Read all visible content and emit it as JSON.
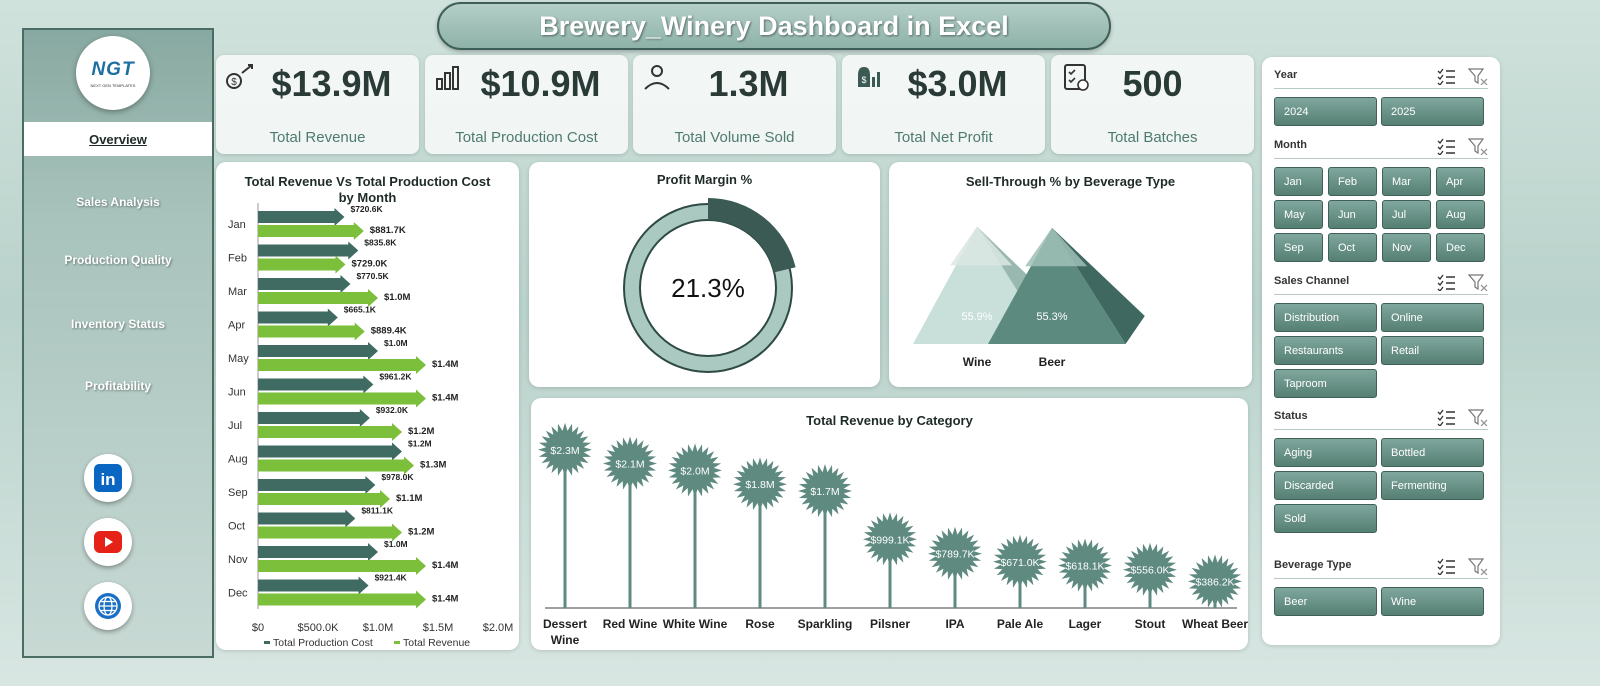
{
  "title": "Brewery_Winery Dashboard in Excel",
  "logo": {
    "text": "NGT",
    "subtext": "NEXT GEN TEMPLATES"
  },
  "nav": [
    {
      "label": "Overview",
      "active": true
    },
    {
      "label": "Sales Analysis"
    },
    {
      "label": "Production Quality"
    },
    {
      "label": "Inventory Status"
    },
    {
      "label": "Profitability"
    }
  ],
  "social": [
    "linkedin-icon",
    "youtube-icon",
    "globe-icon"
  ],
  "kpis": [
    {
      "value": "$13.9M",
      "label": "Total Revenue",
      "icon": "revenue-icon"
    },
    {
      "value": "$10.9M",
      "label": "Total Production Cost",
      "icon": "production-cost-icon"
    },
    {
      "value": "1.3M",
      "label": "Total Volume Sold",
      "icon": "volume-sold-icon"
    },
    {
      "value": "$3.0M",
      "label": "Total Net Profit",
      "icon": "net-profit-icon"
    },
    {
      "value": "500",
      "label": "Total Batches",
      "icon": "batches-icon"
    }
  ],
  "slicers": [
    {
      "title": "Year",
      "items": [
        "2024",
        "2025"
      ]
    },
    {
      "title": "Month",
      "items": [
        "Jan",
        "Feb",
        "Mar",
        "Apr",
        "May",
        "Jun",
        "Jul",
        "Aug",
        "Sep",
        "Oct",
        "Nov",
        "Dec"
      ]
    },
    {
      "title": "Sales Channel",
      "items": [
        "Distribution",
        "Online",
        "Restaurants",
        "Retail",
        "Taproom"
      ]
    },
    {
      "title": "Status",
      "items": [
        "Aging",
        "Bottled",
        "Discarded",
        "Fermenting",
        "Sold"
      ]
    },
    {
      "title": "Beverage Type",
      "items": [
        "Beer",
        "Wine"
      ]
    }
  ],
  "colors": {
    "cost": "#3f6b63",
    "revenue": "#7bbf3a",
    "accent": "#5e8a80",
    "dark": "#3a5a53",
    "light": "#a9c9c1"
  },
  "chart_data": [
    {
      "type": "bar",
      "orientation": "horizontal",
      "title": "Total Revenue Vs Total Production Cost by Month",
      "categories": [
        "Jan",
        "Feb",
        "Mar",
        "Apr",
        "May",
        "Jun",
        "Jul",
        "Aug",
        "Sep",
        "Oct",
        "Nov",
        "Dec"
      ],
      "series": [
        {
          "name": "Total Production Cost",
          "values": [
            720.6,
            835.8,
            770.5,
            665.1,
            1000,
            961.2,
            932.0,
            1200,
            978.0,
            811.1,
            1000,
            921.4
          ],
          "labels": [
            "$720.6K",
            "$835.8K",
            "$770.5K",
            "$665.1K",
            "$1.0M",
            "$961.2K",
            "$932.0K",
            "$1.2M",
            "$978.0K",
            "$811.1K",
            "$1.0M",
            "$921.4K"
          ]
        },
        {
          "name": "Total Revenue",
          "values": [
            881.7,
            729.0,
            1000,
            889.4,
            1400,
            1400,
            1200,
            1300,
            1100,
            1200,
            1400,
            1400
          ],
          "labels": [
            "$881.7K",
            "$729.0K",
            "$1.0M",
            "$889.4K",
            "$1.4M",
            "$1.4M",
            "$1.2M",
            "$1.3M",
            "$1.1M",
            "$1.2M",
            "$1.4M",
            "$1.4M"
          ]
        }
      ],
      "xticks": [
        "$0",
        "$500.0K",
        "$1.0M",
        "$1.5M",
        "$2.0M"
      ],
      "xlim": [
        0,
        2000
      ],
      "legend": "bottom"
    },
    {
      "type": "pie",
      "subtype": "donut",
      "title": "Profit Margin %",
      "value": 21.3,
      "label": "21.3%"
    },
    {
      "type": "bar",
      "subtype": "pyramid",
      "title": "Sell-Through % by Beverage Type",
      "categories": [
        "Wine",
        "Beer"
      ],
      "values": [
        55.9,
        55.3
      ],
      "labels": [
        "55.9%",
        "55.3%"
      ]
    },
    {
      "type": "bar",
      "subtype": "lollipop",
      "title": "Total Revenue  by Category",
      "categories": [
        "Dessert Wine",
        "Red Wine",
        "White Wine",
        "Rose",
        "Sparkling",
        "Pilsner",
        "IPA",
        "Pale Ale",
        "Lager",
        "Stout",
        "Wheat Beer"
      ],
      "values": [
        2.3,
        2.1,
        2.0,
        1.8,
        1.7,
        0.9991,
        0.7897,
        0.671,
        0.6181,
        0.556,
        0.3862
      ],
      "labels": [
        "$2.3M",
        "$2.1M",
        "$2.0M",
        "$1.8M",
        "$1.7M",
        "$999.1K",
        "$789.7K",
        "$671.0K",
        "$618.1K",
        "$556.0K",
        "$386.2K"
      ]
    }
  ]
}
